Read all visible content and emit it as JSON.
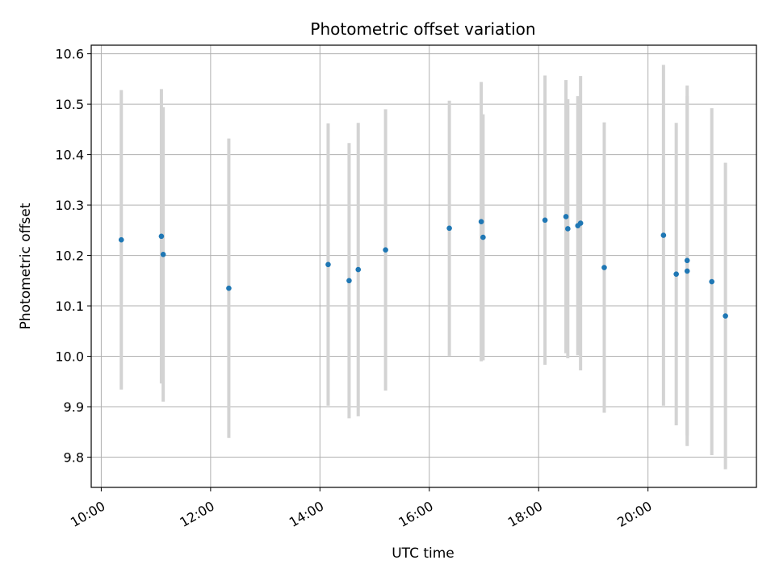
{
  "chart_data": {
    "type": "scatter",
    "title": "Photometric offset variation",
    "xlabel": "UTC time",
    "ylabel": "Photometric offset",
    "xlim": [
      "09:49",
      "21:59"
    ],
    "ylim": [
      9.74,
      10.617
    ],
    "grid": true,
    "x_ticks": [
      "10:00",
      "12:00",
      "14:00",
      "16:00",
      "18:00",
      "20:00"
    ],
    "y_ticks": [
      9.8,
      9.9,
      10.0,
      10.1,
      10.2,
      10.3,
      10.4,
      10.5,
      10.6
    ],
    "y_tick_labels": [
      "9.8",
      "9.9",
      "10.0",
      "10.1",
      "10.2",
      "10.3",
      "10.4",
      "10.5",
      "10.6"
    ],
    "point_color": "#1f77b4",
    "errorbar_color": "#d3d3d3",
    "points": [
      {
        "x": "10:22",
        "y": 10.231,
        "yerr": 0.297
      },
      {
        "x": "11:06",
        "y": 10.238,
        "yerr": 0.292
      },
      {
        "x": "11:08",
        "y": 10.202,
        "yerr": 0.292
      },
      {
        "x": "12:20",
        "y": 10.135,
        "yerr": 0.297
      },
      {
        "x": "14:09",
        "y": 10.182,
        "yerr": 0.28
      },
      {
        "x": "14:32",
        "y": 10.15,
        "yerr": 0.273
      },
      {
        "x": "14:42",
        "y": 10.172,
        "yerr": 0.291
      },
      {
        "x": "15:12",
        "y": 10.211,
        "yerr": 0.279
      },
      {
        "x": "16:22",
        "y": 10.254,
        "yerr": 0.253
      },
      {
        "x": "16:57",
        "y": 10.267,
        "yerr": 0.277
      },
      {
        "x": "16:59",
        "y": 10.236,
        "yerr": 0.244
      },
      {
        "x": "18:07",
        "y": 10.27,
        "yerr": 0.287
      },
      {
        "x": "18:30",
        "y": 10.277,
        "yerr": 0.271
      },
      {
        "x": "18:32",
        "y": 10.253,
        "yerr": 0.257
      },
      {
        "x": "18:43",
        "y": 10.259,
        "yerr": 0.257
      },
      {
        "x": "18:46",
        "y": 10.264,
        "yerr": 0.292
      },
      {
        "x": "19:12",
        "y": 10.176,
        "yerr": 0.288
      },
      {
        "x": "20:17",
        "y": 10.24,
        "yerr": 0.338
      },
      {
        "x": "20:31",
        "y": 10.163,
        "yerr": 0.3
      },
      {
        "x": "20:43",
        "y": 10.19,
        "yerr": 0.347
      },
      {
        "x": "20:43",
        "y": 10.169,
        "yerr": 0.347
      },
      {
        "x": "21:10",
        "y": 10.148,
        "yerr": 0.344
      },
      {
        "x": "21:25",
        "y": 10.08,
        "yerr": 0.304
      }
    ]
  }
}
